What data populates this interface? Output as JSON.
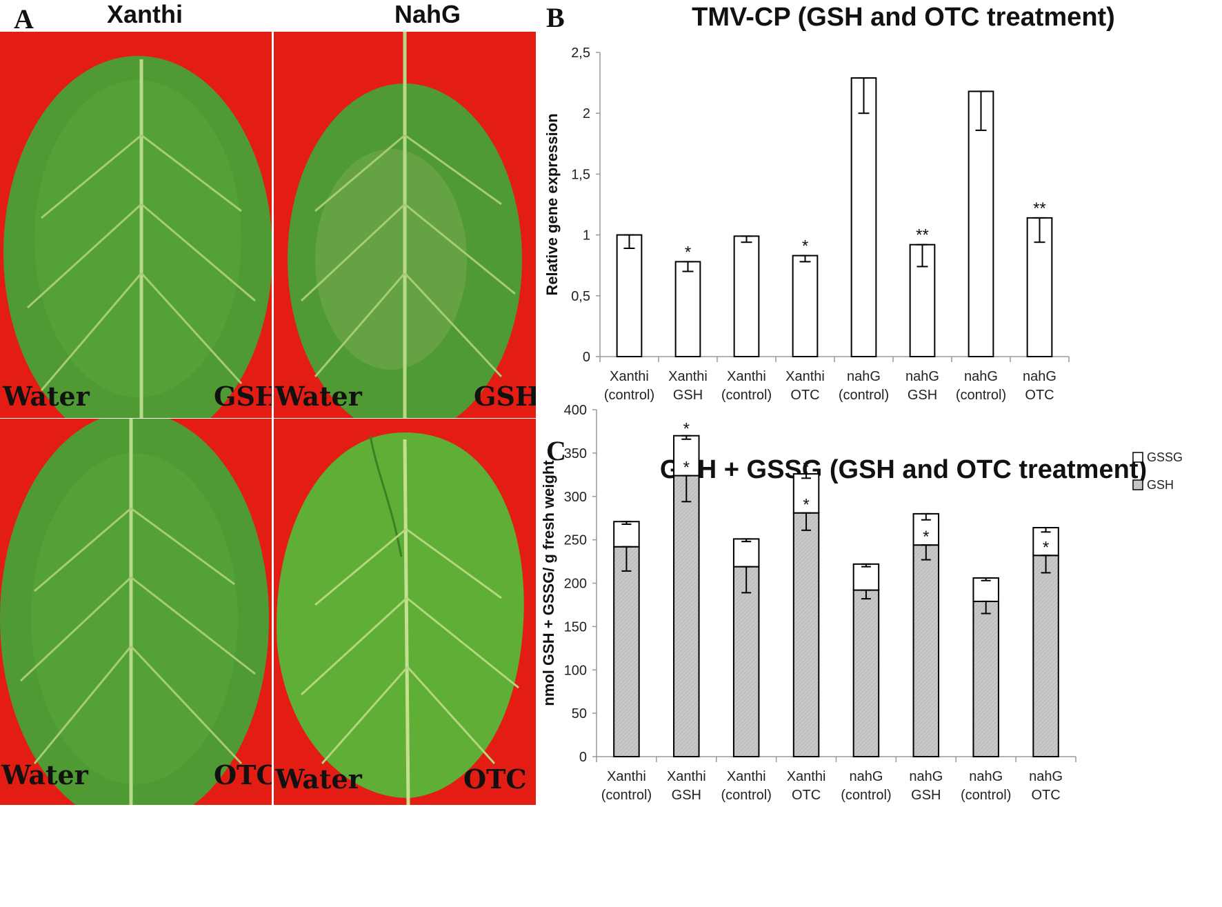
{
  "panel_a": {
    "letter": "A",
    "columns": [
      "Xanthi",
      "NahG"
    ],
    "photos": [
      {
        "id": "xanthi-gsh",
        "label_left": "Water",
        "label_right": "GSH"
      },
      {
        "id": "nahg-gsh",
        "label_left": "Water",
        "label_right": "GSH"
      },
      {
        "id": "xanthi-otc",
        "label_left": "Water",
        "label_right": "OTC"
      },
      {
        "id": "nahg-otc",
        "label_left": "Water",
        "label_right": "OTC"
      }
    ],
    "colors": {
      "background": "#e41d14",
      "leaf": "#4f9a32",
      "leaf_dark": "#3d7f27",
      "vein": "#b9d98a"
    }
  },
  "chart_data": [
    {
      "panel": "B",
      "type": "bar",
      "title": "TMV-CP (GSH and OTC treatment)",
      "ylabel": "Relative gene expression",
      "xlabel": "",
      "ylim": [
        0,
        2.5
      ],
      "yticks": [
        "0",
        "0,5",
        "1",
        "1,5",
        "2",
        "2,5"
      ],
      "categories": [
        [
          "Xanthi",
          "(control)"
        ],
        [
          "Xanthi",
          "GSH"
        ],
        [
          "Xanthi",
          "(control)"
        ],
        [
          "Xanthi",
          "OTC"
        ],
        [
          "nahG",
          "(control)"
        ],
        [
          "nahG",
          "GSH"
        ],
        [
          "nahG",
          "(control)"
        ],
        [
          "nahG",
          "OTC"
        ]
      ],
      "values": [
        1.0,
        0.78,
        0.99,
        0.83,
        2.29,
        0.92,
        2.18,
        1.14
      ],
      "errors": [
        0.11,
        0.08,
        0.05,
        0.05,
        0.29,
        0.18,
        0.32,
        0.2
      ],
      "significance": [
        "",
        "*",
        "",
        "*",
        "",
        "**",
        "",
        "**"
      ],
      "grid": false,
      "colors": {
        "bar": "#ffffff",
        "edge": "#000000"
      }
    },
    {
      "panel": "C",
      "type": "bar",
      "stacked": true,
      "title": "GSH + GSSG (GSH and OTC treatment)",
      "ylabel": "nmol GSH + GSSG/ g fresh weight",
      "xlabel": "",
      "ylim": [
        0,
        400
      ],
      "yticks": [
        "0",
        "50",
        "100",
        "150",
        "200",
        "250",
        "300",
        "350",
        "400"
      ],
      "categories": [
        [
          "Xanthi",
          "(control)"
        ],
        [
          "Xanthi",
          "GSH"
        ],
        [
          "Xanthi",
          "(control)"
        ],
        [
          "Xanthi",
          "OTC"
        ],
        [
          "nahG",
          "(control)"
        ],
        [
          "nahG",
          "GSH"
        ],
        [
          "nahG",
          "(control)"
        ],
        [
          "nahG",
          "OTC"
        ]
      ],
      "series": [
        {
          "name": "GSH",
          "values": [
            242,
            324,
            219,
            281,
            192,
            244,
            179,
            232
          ],
          "errors": [
            28,
            30,
            30,
            20,
            10,
            17,
            14,
            20
          ],
          "significance": [
            "",
            "*",
            "",
            "*",
            "",
            "*",
            "",
            "*"
          ],
          "color": "#c8c8c8"
        },
        {
          "name": "GSSG",
          "values": [
            29,
            46,
            32,
            45,
            30,
            36,
            27,
            32
          ],
          "errors": [
            3,
            4,
            3,
            5,
            3,
            7,
            3,
            5
          ],
          "significance": [
            "",
            "*",
            "",
            "*",
            "",
            "",
            "",
            ""
          ],
          "color": "#ffffff"
        }
      ],
      "legend": "top-right",
      "grid": false
    }
  ]
}
